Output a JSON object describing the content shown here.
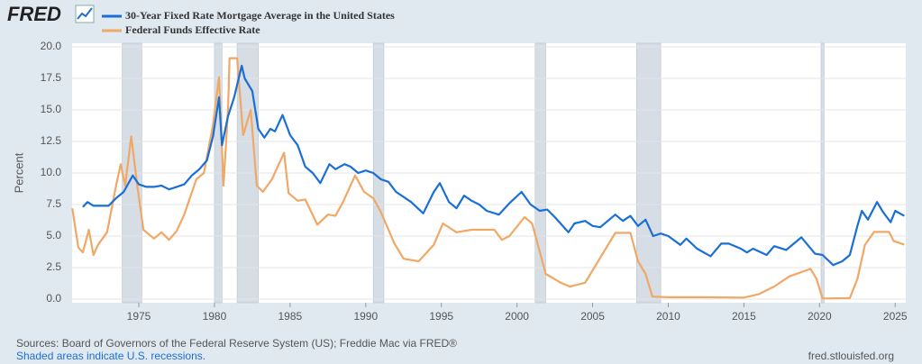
{
  "logo": "FRED",
  "chart_data": {
    "type": "line",
    "series": [
      {
        "name": "30-Year Fixed Rate Mortgage Average in the United States",
        "color": "#1a6fd6",
        "x": [
          1971.3,
          1971.6,
          1972,
          1972.5,
          1973,
          1973.5,
          1974,
          1974.6,
          1975,
          1975.5,
          1976,
          1976.5,
          1977,
          1977.5,
          1978,
          1978.5,
          1979,
          1979.5,
          1979.9,
          1980.3,
          1980.5,
          1980.9,
          1981.3,
          1981.8,
          1982,
          1982.5,
          1982.9,
          1983.3,
          1983.7,
          1984,
          1984.5,
          1985,
          1985.5,
          1986,
          1986.5,
          1987,
          1987.6,
          1988,
          1988.6,
          1989,
          1989.5,
          1990,
          1990.5,
          1991,
          1991.5,
          1992,
          1992.5,
          1993,
          1993.8,
          1994.5,
          1994.9,
          1995.5,
          1996,
          1996.5,
          1997,
          1997.5,
          1998,
          1998.8,
          1999.5,
          2000.3,
          2000.9,
          2001.5,
          2002,
          2002.5,
          2003.4,
          2003.8,
          2004.5,
          2005,
          2005.5,
          2006.5,
          2007,
          2007.5,
          2008,
          2008.5,
          2009,
          2009.5,
          2010,
          2010.8,
          2011.2,
          2011.9,
          2012.8,
          2013.5,
          2014,
          2014.8,
          2015.2,
          2015.6,
          2016.5,
          2017,
          2017.8,
          2018.8,
          2019.7,
          2020.2,
          2020.9,
          2021.5,
          2022,
          2022.5,
          2022.8,
          2023.2,
          2023.8,
          2024.2,
          2024.7,
          2025,
          2025.6
        ],
        "values": [
          7.3,
          7.7,
          7.4,
          7.4,
          7.4,
          8.0,
          8.5,
          9.8,
          9.1,
          8.9,
          8.9,
          9.0,
          8.7,
          8.9,
          9.1,
          9.8,
          10.3,
          11.0,
          12.9,
          16.0,
          12.2,
          14.5,
          16.0,
          18.5,
          17.5,
          16.5,
          13.5,
          12.8,
          13.5,
          13.3,
          14.6,
          13.0,
          12.2,
          10.5,
          10.0,
          9.2,
          10.7,
          10.3,
          10.7,
          10.5,
          10.0,
          10.2,
          10.0,
          9.5,
          9.3,
          8.5,
          8.1,
          7.7,
          6.8,
          8.5,
          9.2,
          7.7,
          7.2,
          8.2,
          7.8,
          7.5,
          7.0,
          6.7,
          7.6,
          8.5,
          7.5,
          7.0,
          7.1,
          6.5,
          5.3,
          6.0,
          6.2,
          5.8,
          5.7,
          6.7,
          6.2,
          6.6,
          5.8,
          6.3,
          5.0,
          5.2,
          5.0,
          4.3,
          4.8,
          4.0,
          3.4,
          4.4,
          4.4,
          4.0,
          3.7,
          4.0,
          3.5,
          4.2,
          3.9,
          4.9,
          3.6,
          3.5,
          2.7,
          3.0,
          3.5,
          5.8,
          7.0,
          6.3,
          7.7,
          6.9,
          6.1,
          7.0,
          6.6
        ]
      },
      {
        "name": "Federal Funds Effective Rate",
        "color": "#f0a866",
        "x": [
          1970.6,
          1971,
          1971.3,
          1971.7,
          1972,
          1972.3,
          1972.9,
          1973.5,
          1973.8,
          1974.1,
          1974.5,
          1974.9,
          1975.3,
          1976,
          1976.5,
          1977,
          1977.5,
          1978,
          1978.8,
          1979.3,
          1979.9,
          1980.3,
          1980.6,
          1980.9,
          1981,
          1981.5,
          1981.9,
          1982.4,
          1982.8,
          1983.2,
          1983.8,
          1984.6,
          1984.9,
          1985.5,
          1986,
          1986.8,
          1987.5,
          1988,
          1988.5,
          1989.3,
          1989.9,
          1990.5,
          1991,
          1991.9,
          1992.5,
          1993.5,
          1994.5,
          1995.1,
          1996,
          1997,
          1998.5,
          1999,
          1999.5,
          2000.5,
          2001,
          2001.9,
          2002.9,
          2003.5,
          2004.5,
          2006.5,
          2007.5,
          2008,
          2008.5,
          2008.95,
          2010,
          2012,
          2015,
          2016,
          2017,
          2018,
          2019.4,
          2019.8,
          2020.2,
          2022,
          2022.5,
          2023,
          2023.6,
          2024.6,
          2024.9,
          2025.6
        ],
        "values": [
          7.2,
          4.1,
          3.7,
          5.5,
          3.5,
          4.3,
          5.3,
          9.0,
          10.7,
          9.0,
          12.9,
          9.0,
          5.5,
          4.8,
          5.3,
          4.7,
          5.4,
          6.7,
          9.5,
          10.0,
          13.8,
          17.6,
          9.0,
          15.0,
          19.1,
          19.1,
          13.0,
          15.0,
          9.0,
          8.5,
          9.5,
          11.6,
          8.4,
          7.8,
          7.9,
          5.9,
          6.7,
          6.6,
          7.7,
          9.8,
          8.5,
          8.0,
          6.9,
          4.4,
          3.2,
          3.0,
          4.3,
          6.0,
          5.3,
          5.5,
          5.5,
          4.7,
          5.0,
          6.5,
          6.0,
          2.0,
          1.3,
          1.0,
          1.3,
          5.25,
          5.25,
          3.0,
          2.0,
          0.2,
          0.15,
          0.15,
          0.12,
          0.4,
          1.0,
          1.8,
          2.4,
          1.6,
          0.05,
          0.08,
          1.6,
          4.3,
          5.33,
          5.33,
          4.6,
          4.33
        ]
      }
    ],
    "recessions": [
      [
        1973.9,
        1975.2
      ],
      [
        1980.0,
        1980.5
      ],
      [
        1981.5,
        1982.9
      ],
      [
        1990.5,
        1991.2
      ],
      [
        2001.2,
        2001.9
      ],
      [
        2007.9,
        2009.5
      ],
      [
        2020.1,
        2020.3
      ]
    ],
    "y_label": "Percent",
    "xlim": [
      1970.59,
      2025.7
    ],
    "xticks": [
      1975,
      1980,
      1985,
      1990,
      1995,
      2000,
      2005,
      2010,
      2015,
      2020,
      2025
    ],
    "ylim": [
      0,
      20
    ],
    "yticks": [
      {
        "value": 0,
        "label": "0.0"
      },
      {
        "value": 2.5,
        "label": "2.5"
      },
      {
        "value": 5,
        "label": "5.0"
      },
      {
        "value": 7.5,
        "label": "7.5"
      },
      {
        "value": 10,
        "label": "10.0"
      },
      {
        "value": 12.5,
        "label": "12.5"
      },
      {
        "value": 15,
        "label": "15.0"
      },
      {
        "value": 17.5,
        "label": "17.5"
      },
      {
        "value": 20,
        "label": "20.0"
      }
    ],
    "grid": true,
    "source": "Sources: Board of Governors of the Federal Reserve System (US); Freddie Mac via FRED®",
    "recession_note": "Shaded areas indicate U.S. recessions.",
    "site": "fred.stlouisfed.org"
  }
}
